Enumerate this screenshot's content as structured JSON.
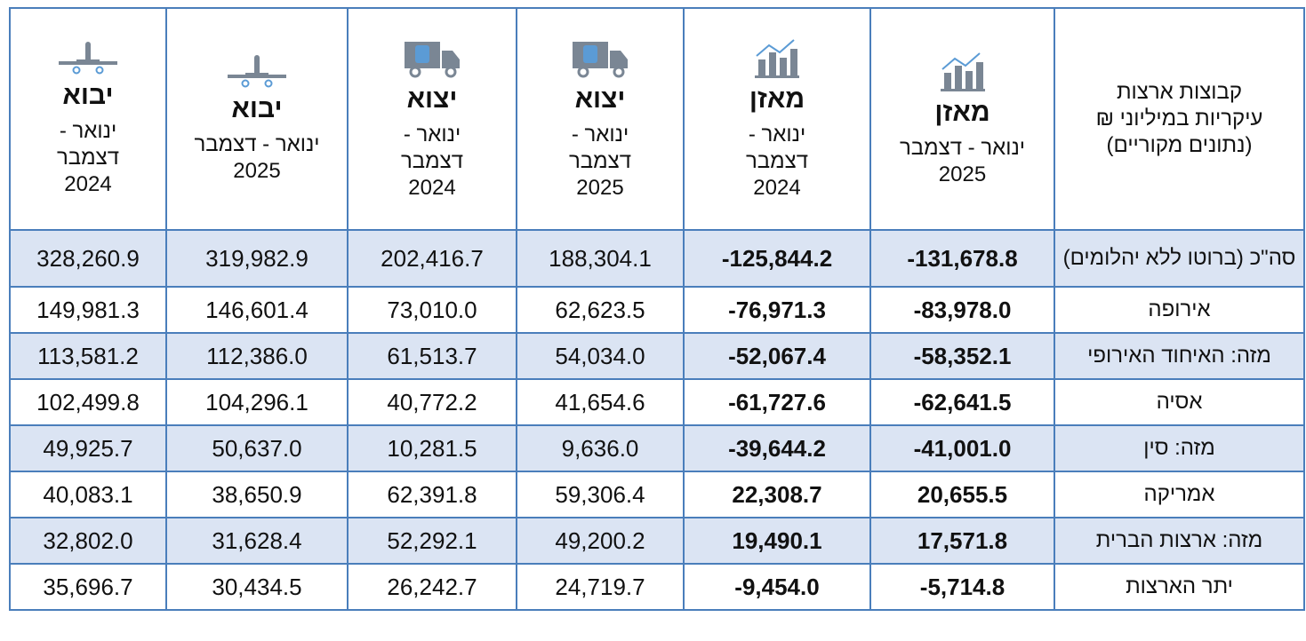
{
  "table": {
    "header": {
      "region": [
        "קבוצות ארצות",
        "עיקריות במיליוני ₪",
        "(נתונים מקוריים)"
      ],
      "columns": [
        {
          "title": "מאזן",
          "period": "ינואר - דצמבר 2025"
        },
        {
          "title": "מאזן",
          "period": "ינואר - דצמבר 2024"
        },
        {
          "title": "יצוא",
          "period": "ינואר - דצמבר 2025"
        },
        {
          "title": "יצוא",
          "period": "ינואר - דצמבר 2024"
        },
        {
          "title": "יבוא",
          "period": "ינואר - דצמבר 2025"
        },
        {
          "title": "יבוא",
          "period": "ינואר - דצמבר 2024"
        }
      ]
    },
    "rows": [
      [
        "סה\"כ (ברוטו ללא יהלומים)",
        "-131,678.8",
        "-125,844.2",
        "188,304.1",
        "202,416.7",
        "319,982.9",
        "328,260.9"
      ],
      [
        "אירופה",
        "-83,978.0",
        "-76,971.3",
        "62,623.5",
        "73,010.0",
        "146,601.4",
        "149,981.3"
      ],
      [
        "מזה: האיחוד האירופי",
        "-58,352.1",
        "-52,067.4",
        "54,034.0",
        "61,513.7",
        "112,386.0",
        "113,581.2"
      ],
      [
        "אסיה",
        "-62,641.5",
        "-61,727.6",
        "41,654.6",
        "40,772.2",
        "104,296.1",
        "102,499.8"
      ],
      [
        "מזה: סין",
        "-41,001.0",
        "-39,644.2",
        "9,636.0",
        "10,281.5",
        "50,637.0",
        "49,925.7"
      ],
      [
        "אמריקה",
        "20,655.5",
        "22,308.7",
        "59,306.4",
        "62,391.8",
        "38,650.9",
        "40,083.1"
      ],
      [
        "מזה: ארצות הברית",
        "17,571.8",
        "19,490.1",
        "49,200.2",
        "52,292.1",
        "31,628.4",
        "32,802.0"
      ],
      [
        "יתר הארצות",
        "-5,714.8",
        "-9,454.0",
        "24,719.7",
        "26,242.7",
        "30,434.5",
        "35,696.7"
      ]
    ]
  }
}
